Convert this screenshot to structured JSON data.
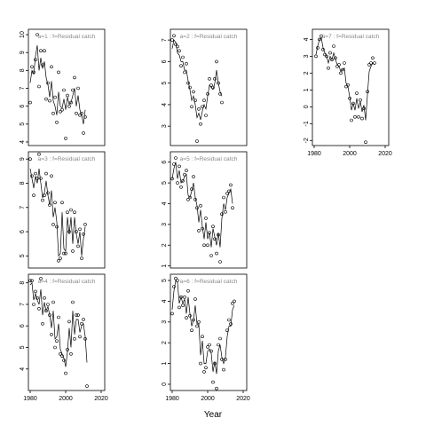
{
  "chart_data": {
    "type": "scatter",
    "xlabel": "Year",
    "panels": [
      {
        "title": "a=1 : f=Residual catch",
        "x_start": 1980,
        "ylim": [
          3.8,
          10.3
        ],
        "yticks": [
          4,
          5,
          6,
          7,
          8,
          9,
          10
        ],
        "y_obs": [
          6.2,
          8.2,
          7.9,
          8.6,
          10,
          7.1,
          9.1,
          8.3,
          9.1,
          6.4,
          7.3,
          6.3,
          8.2,
          5.6,
          6.5,
          5.1,
          7.9,
          5.7,
          5.8,
          6.9,
          4.2,
          6.6,
          6.0,
          6.2,
          6.9,
          7.6,
          5.6,
          7.0,
          5.5,
          5.6,
          4.5,
          5.4
        ],
        "y_fit": [
          7.3,
          8.0,
          7.8,
          8.8,
          9.4,
          8.0,
          8.7,
          8.1,
          8.5,
          7.6,
          7.2,
          6.5,
          7.4,
          6.3,
          6.0,
          5.5,
          6.8,
          6.0,
          5.9,
          6.4,
          5.8,
          6.5,
          6.1,
          6.2,
          6.6,
          7.0,
          6.0,
          6.6,
          5.8,
          5.5,
          5.0,
          5.8
        ]
      },
      {
        "title": "a=2 : f=Residual catch",
        "x_start": 1980,
        "ylim": [
          2.1,
          7.5
        ],
        "yticks": [
          3,
          4,
          5,
          6,
          7
        ],
        "y_obs": [
          7.0,
          7.2,
          6.8,
          6.7,
          6.5,
          5.8,
          6.2,
          5.5,
          5.9,
          5.0,
          4.8,
          3.9,
          4.6,
          4.2,
          2.3,
          3.8,
          3.1,
          3.9,
          4.2,
          3.5,
          4.5,
          5.2,
          4.9,
          4.8,
          5.2,
          6.0,
          5.0,
          4.5,
          4.1
        ],
        "y_fit": [
          6.6,
          7.0,
          6.9,
          6.4,
          6.3,
          6.0,
          6.0,
          5.6,
          5.6,
          5.1,
          4.7,
          4.2,
          4.4,
          4.0,
          3.4,
          3.6,
          3.3,
          3.7,
          4.0,
          3.8,
          4.4,
          4.9,
          4.8,
          4.7,
          5.0,
          5.6,
          5.0,
          4.6,
          4.4
        ]
      },
      {
        "title": "a=7 : f=Residual catch",
        "x_start": 1981,
        "ylim": [
          -2.3,
          4.6
        ],
        "yticks": [
          -2,
          -1,
          0,
          1,
          2,
          3,
          4
        ],
        "y_obs": [
          3.0,
          3.5,
          4.0,
          4.2,
          3.4,
          3.1,
          3.0,
          2.3,
          3.2,
          2.8,
          3.6,
          2.9,
          2.4,
          2.5,
          2.0,
          2.2,
          2.6,
          1.2,
          1.3,
          0.5,
          -0.8,
          0.2,
          -0.6,
          0.8,
          -0.6,
          0.4,
          -0.7,
          -0.1,
          -2.1,
          0.9,
          2.5,
          2.6,
          2.9,
          2.6
        ],
        "y_fit": [
          3.1,
          3.6,
          4.0,
          4.1,
          3.5,
          3.2,
          3.0,
          2.6,
          3.0,
          2.8,
          3.2,
          2.8,
          2.5,
          2.4,
          2.1,
          2.2,
          2.3,
          1.4,
          1.2,
          0.6,
          -0.2,
          0.2,
          -0.2,
          0.5,
          -0.1,
          0.3,
          -0.3,
          0.1,
          -0.8,
          0.7,
          2.1,
          2.4,
          2.6,
          2.5
        ]
      },
      {
        "title": "a=3 : f=Residual catch",
        "x_start": 1980,
        "ylim": [
          4.5,
          9.3
        ],
        "yticks": [
          5,
          6,
          7,
          8,
          9
        ],
        "y_obs": [
          9.0,
          8.3,
          7.5,
          8.4,
          8.2,
          9.2,
          8.2,
          7.3,
          7.5,
          8.4,
          7.6,
          7.1,
          8.3,
          6.3,
          7.2,
          6.2,
          4.8,
          4.9,
          7.2,
          5.1,
          5.1,
          6.8,
          6.0,
          6.9,
          5.2,
          6.8,
          6.0,
          5.4,
          6.1,
          4.9,
          5.9,
          6.3
        ],
        "y_fit": [
          8.6,
          8.2,
          7.8,
          8.3,
          8.0,
          8.6,
          8.0,
          7.4,
          7.6,
          8.1,
          7.5,
          7.1,
          7.7,
          6.6,
          7.0,
          6.4,
          5.0,
          5.1,
          6.8,
          5.3,
          5.2,
          6.6,
          5.9,
          6.6,
          5.5,
          6.6,
          5.9,
          5.5,
          6.0,
          5.0,
          5.7,
          6.2
        ]
      },
      {
        "title": "a=5 : f=Residual catch",
        "x_start": 1980,
        "ylim": [
          0.9,
          6.5
        ],
        "yticks": [
          1,
          2,
          3,
          4,
          5,
          6
        ],
        "y_obs": [
          5.2,
          5.9,
          6.2,
          5.0,
          5.8,
          4.8,
          5.1,
          5.4,
          5.6,
          4.2,
          4.3,
          4.7,
          5.3,
          4.2,
          3.8,
          2.7,
          3.9,
          2.8,
          2.0,
          3.3,
          2.0,
          2.6,
          1.5,
          2.9,
          2.3,
          1.6,
          2.5,
          1.2,
          3.5,
          4.3,
          3.6,
          4.5,
          4.6,
          4.9,
          3.8
        ],
        "y_fit": [
          5.2,
          5.7,
          6.0,
          5.2,
          5.6,
          5.0,
          5.1,
          5.3,
          5.4,
          4.4,
          4.3,
          4.6,
          5.0,
          4.3,
          3.9,
          3.1,
          3.7,
          2.9,
          2.3,
          3.1,
          2.3,
          2.6,
          1.9,
          2.8,
          2.4,
          2.0,
          2.6,
          1.9,
          3.3,
          4.0,
          3.7,
          4.3,
          4.5,
          4.7,
          4.0
        ]
      },
      {
        "title": "a=4 : f=Residual catch",
        "x_start": 1980,
        "ylim": [
          3.0,
          8.4
        ],
        "yticks": [
          4,
          5,
          6,
          7,
          8
        ],
        "y_obs": [
          8.1,
          8.1,
          7.0,
          7.6,
          7.3,
          6.8,
          8.2,
          6.1,
          7.3,
          6.7,
          7.0,
          6.5,
          5.6,
          7.1,
          5.0,
          5.3,
          6.4,
          4.7,
          4.6,
          4.4,
          3.8,
          4.9,
          6.2,
          4.7,
          7.1,
          5.4,
          6.5,
          6.5,
          5.5,
          6.1,
          6.3,
          5.4,
          3.2
        ],
        "y_fit": [
          7.9,
          8.0,
          7.2,
          7.5,
          7.2,
          7.0,
          7.7,
          6.5,
          7.1,
          6.7,
          6.9,
          6.5,
          5.9,
          6.7,
          5.4,
          5.5,
          6.1,
          4.9,
          4.7,
          4.5,
          4.1,
          4.8,
          5.9,
          5.0,
          6.7,
          5.6,
          6.3,
          6.3,
          5.7,
          6.0,
          6.1,
          5.5,
          4.3
        ]
      },
      {
        "title": "a=6 : f=Residual catch",
        "x_start": 1980,
        "ylim": [
          -0.3,
          5.3
        ],
        "yticks": [
          0,
          1,
          2,
          3,
          4,
          5
        ],
        "y_obs": [
          3.4,
          4.7,
          5.1,
          5.0,
          3.7,
          4.2,
          3.8,
          4.2,
          3.2,
          4.5,
          3.3,
          2.6,
          3.1,
          4.1,
          2.8,
          3.0,
          1.0,
          2.3,
          0.6,
          0.8,
          1.8,
          1.9,
          1.6,
          0.1,
          1.0,
          -0.2,
          1.9,
          2.2,
          1.2,
          0.7,
          1.2,
          2.6,
          3.1,
          2.9,
          3.9,
          4.0
        ],
        "y_fit": [
          3.6,
          4.5,
          5.0,
          4.9,
          3.9,
          4.2,
          3.9,
          4.1,
          3.4,
          4.2,
          3.4,
          2.8,
          3.1,
          3.8,
          2.9,
          2.9,
          1.4,
          2.1,
          1.0,
          1.0,
          1.6,
          1.7,
          1.5,
          0.6,
          1.1,
          0.5,
          1.6,
          1.9,
          1.3,
          1.0,
          1.3,
          2.3,
          2.8,
          2.8,
          3.6,
          3.8
        ]
      }
    ]
  }
}
